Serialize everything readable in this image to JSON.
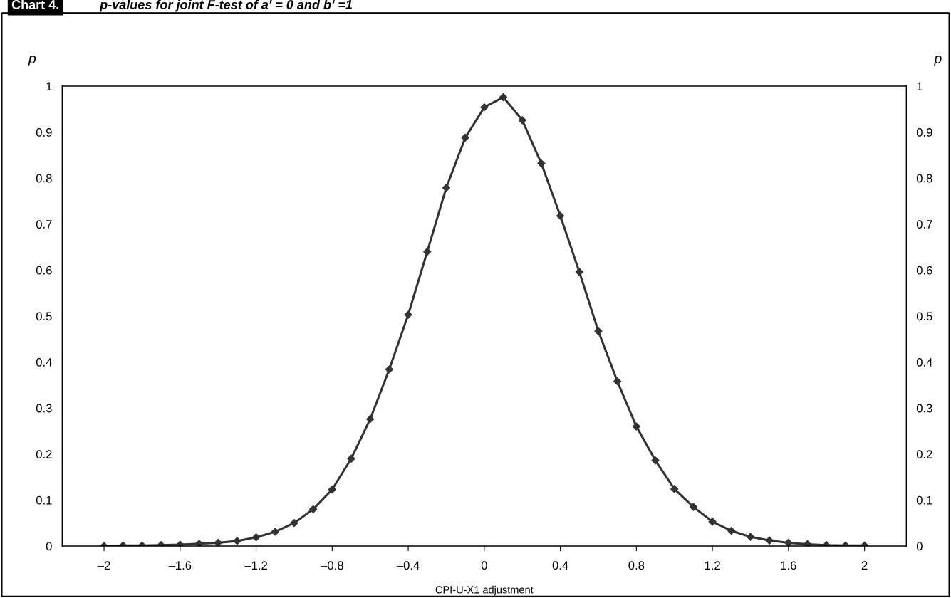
{
  "chart_data": {
    "type": "line",
    "title": "p-values for joint F-test of a′ = 0 and b′ =1",
    "annotations": [
      "Chart 4."
    ],
    "xlabel": "CPI-U-X1 adjustment",
    "ylabel": "p",
    "y2label": "p",
    "x": [
      -2,
      -1.9,
      -1.8,
      -1.7,
      -1.6,
      -1.5,
      -1.4,
      -1.3,
      -1.2,
      -1.1,
      -1.0,
      -0.9,
      -0.8,
      -0.7,
      -0.6,
      -0.5,
      -0.4,
      -0.3,
      -0.2,
      -0.1,
      0,
      0.1,
      0.2,
      0.3,
      0.4,
      0.5,
      0.6,
      0.7,
      0.8,
      0.9,
      1.0,
      1.1,
      1.2,
      1.3,
      1.4,
      1.5,
      1.6,
      1.7,
      1.8,
      1.9,
      2.0
    ],
    "series": [
      {
        "color": "#333333",
        "values": [
          0.0,
          0.001,
          0.001,
          0.002,
          0.003,
          0.005,
          0.007,
          0.011,
          0.019,
          0.031,
          0.05,
          0.08,
          0.123,
          0.19,
          0.276,
          0.384,
          0.503,
          0.64,
          0.779,
          0.888,
          0.954,
          0.976,
          0.926,
          0.832,
          0.718,
          0.596,
          0.467,
          0.358,
          0.26,
          0.186,
          0.124,
          0.085,
          0.053,
          0.033,
          0.02,
          0.012,
          0.007,
          0.004,
          0.002,
          0.001,
          0.001
        ]
      }
    ],
    "xlim": [
      -2.22,
      2.22
    ],
    "xticks": [
      {
        "value": -2,
        "label": "–2"
      },
      {
        "value": -1.6,
        "label": "–1.6"
      },
      {
        "value": -1.2,
        "label": "–1.2"
      },
      {
        "value": -0.8,
        "label": "–0.8"
      },
      {
        "value": -0.4,
        "label": "–0.4"
      },
      0,
      0.4,
      0.8,
      1.2,
      1.6,
      2
    ],
    "ylim": [
      0,
      1
    ],
    "yticks": [
      0,
      0.1,
      0.2,
      0.3,
      0.4,
      0.5,
      0.6,
      0.7,
      0.8,
      0.9,
      1
    ],
    "y2lim": [
      0,
      1
    ],
    "y2ticks": [
      0,
      0.1,
      0.2,
      0.3,
      0.4,
      0.5,
      0.6,
      0.7,
      0.8,
      0.9,
      1
    ],
    "grid": false,
    "legend": false,
    "marker": "diamond",
    "line_style": "solid"
  }
}
